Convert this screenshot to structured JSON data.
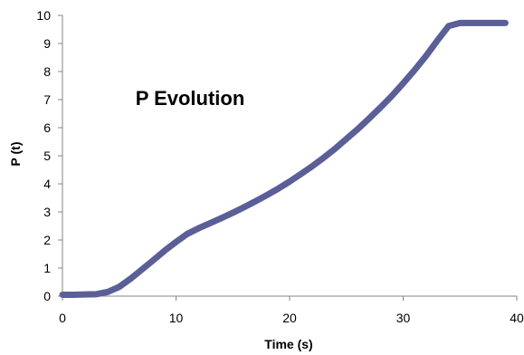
{
  "chart_data": {
    "type": "line",
    "title": "P Evolution",
    "xlabel": "Time (s)",
    "ylabel": "P (t)",
    "xlim": [
      0,
      40
    ],
    "ylim": [
      0,
      10
    ],
    "x_ticks": [
      "0",
      "10",
      "20",
      "30",
      "40"
    ],
    "y_ticks": [
      "0",
      "1",
      "2",
      "3",
      "4",
      "5",
      "6",
      "7",
      "8",
      "9",
      "10"
    ],
    "grid": false,
    "legend": "none",
    "series": [
      {
        "color": "#5b5f97",
        "x": [
          0,
          1,
          2,
          3,
          4,
          5,
          6,
          7,
          8,
          9,
          10,
          11,
          12,
          13,
          14,
          15,
          16,
          17,
          18,
          19,
          20,
          21,
          22,
          23,
          24,
          25,
          26,
          27,
          28,
          29,
          30,
          31,
          32,
          33,
          34,
          35,
          36,
          37,
          38,
          39
        ],
        "y": [
          0.05,
          0.05,
          0.06,
          0.07,
          0.15,
          0.33,
          0.62,
          0.95,
          1.28,
          1.62,
          1.93,
          2.22,
          2.42,
          2.6,
          2.78,
          2.97,
          3.17,
          3.38,
          3.6,
          3.83,
          4.08,
          4.35,
          4.63,
          4.93,
          5.25,
          5.6,
          5.95,
          6.33,
          6.72,
          7.13,
          7.58,
          8.05,
          8.55,
          9.1,
          9.62,
          9.73,
          9.73,
          9.73,
          9.73,
          9.73
        ]
      }
    ]
  }
}
